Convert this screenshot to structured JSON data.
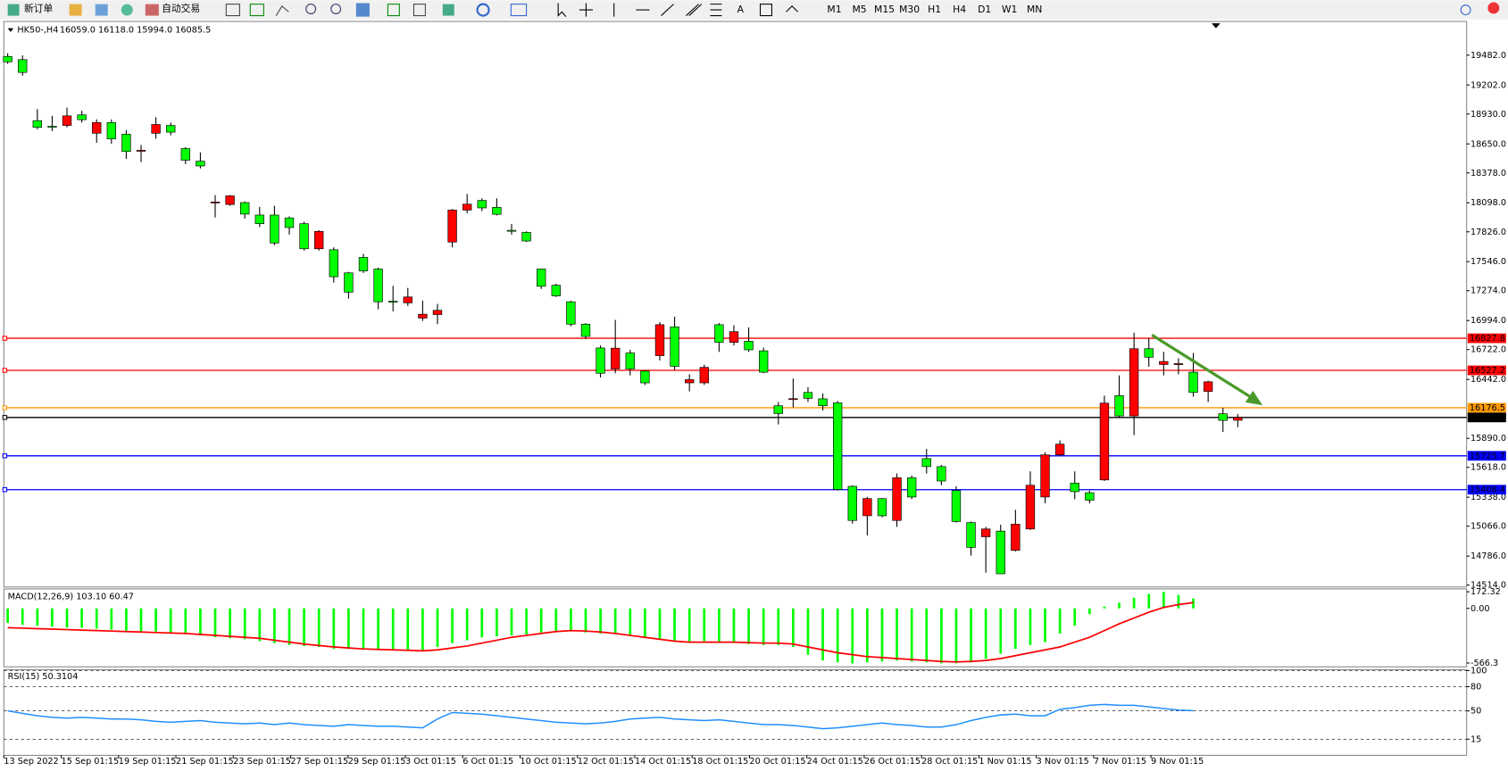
{
  "toolbar": {
    "new_order": "新订单",
    "auto_trading": "自动交易",
    "periods": [
      "M1",
      "M5",
      "M15",
      "M30",
      "H1",
      "H4",
      "D1",
      "W1",
      "MN"
    ]
  },
  "chart_data": [
    {
      "type": "candlestick",
      "title": "HK50-,H4",
      "ohlc_text": "16059.0 16118.0 15994.0 16085.5",
      "up_color": "#ff0000",
      "down_color": "#00ff00",
      "open": [
        19470,
        19440,
        18868,
        18815,
        18823,
        18922,
        18750,
        18850,
        18741,
        18588,
        18750,
        18823,
        18606,
        18488,
        18100,
        18082,
        18100,
        17983,
        17983,
        17956,
        17902,
        17667,
        17658,
        17441,
        17586,
        17477,
        17175,
        17160,
        17017,
        17050,
        17730,
        18030,
        18120,
        18055,
        17840,
        17820,
        17477,
        17325,
        17170,
        16960,
        16737,
        16540,
        16690,
        16520,
        16665,
        16935,
        16410,
        16410,
        16955,
        16790,
        16800,
        16710,
        16195,
        16260,
        16320,
        16260,
        16222,
        15440,
        15164,
        15325,
        15120,
        15520,
        15700,
        15625,
        15400,
        15100,
        14967,
        15020,
        14840,
        15040,
        15340,
        15735,
        15470,
        15380,
        15500,
        16290,
        16100,
        16730,
        16582,
        16590,
        16510,
        16330,
        16120,
        16059
      ],
      "high": [
        19500,
        19480,
        18976,
        18913,
        18990,
        18960,
        18880,
        18880,
        18780,
        18640,
        18900,
        18850,
        18620,
        18570,
        18170,
        18170,
        18110,
        18060,
        18070,
        17970,
        17920,
        17840,
        17680,
        17450,
        17620,
        17490,
        17320,
        17300,
        17180,
        17150,
        18040,
        18180,
        18140,
        18140,
        17900,
        17830,
        17480,
        17340,
        17180,
        16970,
        16760,
        17000,
        16720,
        16530,
        16980,
        17030,
        16490,
        16580,
        16970,
        16950,
        16930,
        16740,
        16230,
        16450,
        16370,
        16310,
        16240,
        15450,
        15340,
        15330,
        15560,
        15540,
        15790,
        15640,
        15440,
        15110,
        15060,
        15080,
        15220,
        15580,
        15760,
        15870,
        15580,
        15400,
        16290,
        16480,
        16880,
        16830,
        16700,
        16640,
        16690,
        16430,
        16176,
        16118
      ],
      "low": [
        19400,
        19290,
        18787,
        18770,
        18805,
        18850,
        18660,
        18650,
        18510,
        18480,
        18700,
        18730,
        18460,
        18420,
        17960,
        18070,
        17950,
        17870,
        17700,
        17800,
        17650,
        17650,
        17350,
        17200,
        17440,
        17100,
        17080,
        17130,
        16990,
        16960,
        17680,
        18000,
        18020,
        17980,
        17800,
        17730,
        17290,
        17215,
        16940,
        16820,
        16460,
        16500,
        16480,
        16390,
        16620,
        16530,
        16330,
        16390,
        16700,
        16760,
        16700,
        16500,
        16020,
        16180,
        16230,
        16150,
        15400,
        15090,
        14980,
        15150,
        15060,
        15320,
        15560,
        15450,
        15100,
        14790,
        14630,
        14620,
        14830,
        15030,
        15280,
        15720,
        15320,
        15280,
        15490,
        16080,
        15920,
        16560,
        16480,
        16490,
        16280,
        16230,
        15950,
        15994
      ],
      "close": [
        19420,
        19320,
        18805,
        18810,
        18913,
        18877,
        18850,
        18697,
        18579,
        18590,
        18832,
        18760,
        18497,
        18443,
        18105,
        18163,
        17992,
        17902,
        17721,
        17866,
        17667,
        17830,
        17405,
        17260,
        17459,
        17170,
        17170,
        17215,
        17053,
        17090,
        18030,
        18085,
        18050,
        17990,
        17838,
        17740,
        17315,
        17225,
        16960,
        16845,
        16500,
        16735,
        16540,
        16410,
        16955,
        16565,
        16440,
        16555,
        16790,
        16890,
        16720,
        16510,
        16122,
        16262,
        16265,
        16195,
        15410,
        15120,
        15325,
        15164,
        15520,
        15340,
        15625,
        15490,
        15110,
        14867,
        15040,
        14620,
        15085,
        15450,
        15735,
        15835,
        15390,
        15310,
        16220,
        16100,
        16730,
        16650,
        16610,
        16590,
        16320,
        16420,
        16058,
        16085.5
      ],
      "ylim": [
        14496,
        19798
      ],
      "yticks": [
        {
          "value": 19482,
          "label": "19482.0"
        },
        {
          "value": 19202,
          "label": "19202.0"
        },
        {
          "value": 18930,
          "label": "18930.0"
        },
        {
          "value": 18650,
          "label": "18650.0"
        },
        {
          "value": 18378,
          "label": "18378.0"
        },
        {
          "value": 18098,
          "label": "18098.0"
        },
        {
          "value": 17826,
          "label": "17826.0"
        },
        {
          "value": 17546,
          "label": "17546.0"
        },
        {
          "value": 17274,
          "label": "17274.0"
        },
        {
          "value": 16994,
          "label": "16994.0"
        },
        {
          "value": 16722,
          "label": "16722.0"
        },
        {
          "value": 16442,
          "label": "16442.0"
        },
        {
          "value": 15890,
          "label": "15890.0"
        },
        {
          "value": 15618,
          "label": "15618.0"
        },
        {
          "value": 15338,
          "label": "15338.0"
        },
        {
          "value": 15066,
          "label": "15066.0"
        },
        {
          "value": 14786,
          "label": "14786.0"
        },
        {
          "value": 14514,
          "label": "14514.0"
        }
      ],
      "levels": [
        {
          "value": 16827.8,
          "color": "#ff0000"
        },
        {
          "value": 16527.2,
          "color": "#ff0000"
        },
        {
          "value": 16176.5,
          "color": "#ff9900"
        },
        {
          "value": 16085.5,
          "color": "#000000"
        },
        {
          "value": 15725.7,
          "color": "#0000ff"
        },
        {
          "value": 15408.4,
          "color": "#0000ff"
        }
      ],
      "xtick_labels": [
        "13 Sep 2022",
        "15 Sep 01:15",
        "19 Sep 01:15",
        "21 Sep 01:15",
        "23 Sep 01:15",
        "27 Sep 01:15",
        "29 Sep 01:15",
        "3 Oct 01:15",
        "6 Oct 01:15",
        "10 Oct 01:15",
        "12 Oct 01:15",
        "14 Oct 01:15",
        "18 Oct 01:15",
        "20 Oct 01:15",
        "24 Oct 01:15",
        "26 Oct 01:15",
        "28 Oct 01:15",
        "1 Nov 01:15",
        "3 Nov 01:15",
        "7 Nov 01:15",
        "9 Nov 01:15"
      ]
    },
    {
      "type": "macd",
      "title": "MACD(12,26,9) 103.10 60.47",
      "ylim": [
        -606,
        202
      ],
      "yticks": [
        172.32,
        {
          "value": 0,
          "label": "0.00"
        },
        -566.3
      ],
      "series": [
        {
          "kind": "bar",
          "color": "#00ff00",
          "values": [
            -150,
            -170,
            -180,
            -190,
            -200,
            -200,
            -210,
            -220,
            -230,
            -240,
            -240,
            -250,
            -260,
            -280,
            -300,
            -310,
            -320,
            -340,
            -360,
            -380,
            -390,
            -400,
            -420,
            -420,
            -430,
            -430,
            -430,
            -440,
            -440,
            -400,
            -360,
            -330,
            -300,
            -290,
            -280,
            -270,
            -250,
            -240,
            -240,
            -250,
            -260,
            -260,
            -280,
            -300,
            -320,
            -340,
            -350,
            -340,
            -350,
            -360,
            -370,
            -380,
            -380,
            -400,
            -480,
            -540,
            -560,
            -570,
            -560,
            -550,
            -540,
            -550,
            -560,
            -570,
            -570,
            -560,
            -520,
            -470,
            -420,
            -380,
            -350,
            -260,
            -180,
            -60,
            20,
            60,
            110,
            150,
            172,
            140,
            103.1
          ]
        },
        {
          "kind": "line",
          "color": "#ff0000",
          "values": [
            -200,
            -205,
            -210,
            -215,
            -220,
            -225,
            -230,
            -235,
            -240,
            -245,
            -250,
            -255,
            -260,
            -270,
            -280,
            -290,
            -300,
            -310,
            -330,
            -350,
            -370,
            -385,
            -400,
            -410,
            -420,
            -425,
            -430,
            -435,
            -440,
            -430,
            -410,
            -390,
            -360,
            -330,
            -300,
            -280,
            -260,
            -240,
            -230,
            -235,
            -245,
            -260,
            -280,
            -300,
            -320,
            -340,
            -350,
            -350,
            -350,
            -350,
            -355,
            -360,
            -360,
            -370,
            -400,
            -430,
            -460,
            -480,
            -500,
            -510,
            -520,
            -530,
            -540,
            -550,
            -555,
            -550,
            -540,
            -520,
            -490,
            -460,
            -430,
            -400,
            -350,
            -300,
            -230,
            -160,
            -100,
            -40,
            10,
            40,
            60.47
          ]
        }
      ]
    },
    {
      "type": "rsi",
      "title": "RSI(15) 50.3104",
      "ylim": [
        -5,
        101
      ],
      "yticks": [
        100,
        80,
        50,
        15
      ],
      "color": "#1e90ff",
      "values": [
        50,
        47,
        44,
        42,
        41,
        42,
        41,
        40,
        40,
        39,
        37,
        36,
        37,
        38,
        36,
        35,
        34,
        35,
        33,
        35,
        33,
        32,
        31,
        33,
        32,
        31,
        31,
        30,
        29,
        40,
        48,
        47,
        46,
        44,
        42,
        40,
        38,
        36,
        35,
        34,
        35,
        37,
        40,
        41,
        42,
        40,
        39,
        38,
        39,
        37,
        35,
        33,
        33,
        32,
        30,
        28,
        29,
        31,
        33,
        35,
        33,
        32,
        30,
        30,
        33,
        38,
        42,
        45,
        46,
        44,
        44,
        52,
        54,
        57,
        58,
        57,
        57,
        55,
        53,
        51,
        50.3104
      ]
    }
  ]
}
